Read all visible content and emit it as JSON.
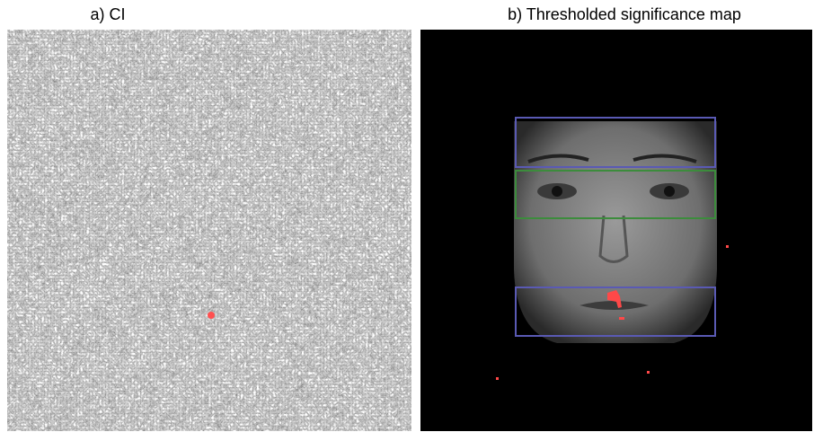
{
  "panels": [
    {
      "title": "a) CI"
    },
    {
      "title": "b) Thresholded significance map"
    }
  ]
}
